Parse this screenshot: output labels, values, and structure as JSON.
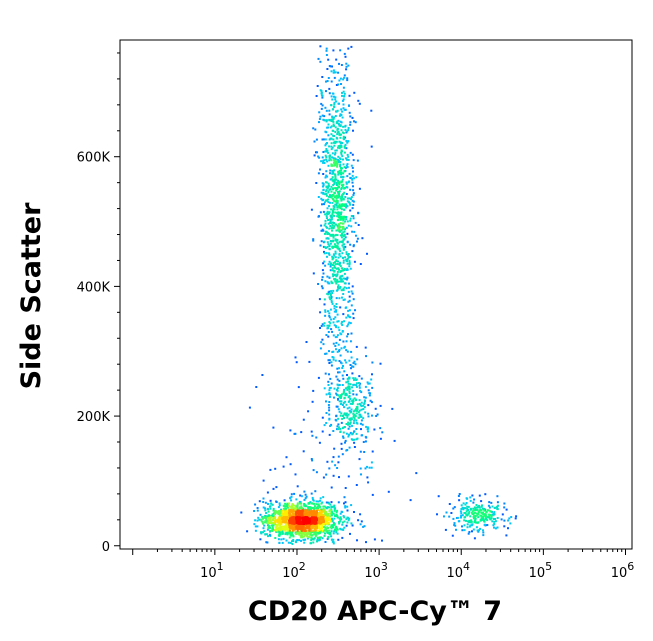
{
  "chart_data": {
    "type": "scatter",
    "subtype": "flow-cytometry-density-dot-plot",
    "title": "",
    "xlabel": "CD20 APC-Cy™ 7",
    "ylabel": "Side Scatter",
    "x_scale": "log",
    "xlim": [
      0.7,
      1200000
    ],
    "y_scale": "linear",
    "ylim": [
      -5000,
      780000
    ],
    "x_ticks": [
      {
        "value": 10,
        "base": "10",
        "exp": "1"
      },
      {
        "value": 100,
        "base": "10",
        "exp": "2"
      },
      {
        "value": 1000,
        "base": "10",
        "exp": "3"
      },
      {
        "value": 10000,
        "base": "10",
        "exp": "4"
      },
      {
        "value": 100000,
        "base": "10",
        "exp": "5"
      },
      {
        "value": 1000000,
        "base": "10",
        "exp": "6"
      }
    ],
    "y_ticks": [
      {
        "value": 0,
        "label": "0"
      },
      {
        "value": 200000,
        "label": "200K"
      },
      {
        "value": 400000,
        "label": "400K"
      },
      {
        "value": 600000,
        "label": "600K"
      }
    ],
    "grid": false,
    "legend": "none",
    "color_scale": [
      "#0000ff",
      "#00c8ff",
      "#00ff80",
      "#ffff00",
      "#ff8000",
      "#ff0000"
    ],
    "populations": [
      {
        "x_center": 110,
        "y_center": 40000,
        "x_spread_decades": 0.22,
        "y_spread": 14000,
        "relative_count": 0.45
      },
      {
        "x_center": 300,
        "y_center": 520000,
        "x_spread_decades": 0.11,
        "y_spread": 120000,
        "relative_count": 0.33
      },
      {
        "x_center": 450,
        "y_center": 220000,
        "x_spread_decades": 0.13,
        "y_spread": 32000,
        "relative_count": 0.08
      },
      {
        "x_center": 15000,
        "y_center": 48000,
        "x_spread_decades": 0.17,
        "y_spread": 12000,
        "relative_count": 0.07
      },
      {
        "x_center": 250,
        "y_center": 130000,
        "x_spread_decades": 0.4,
        "y_spread": 80000,
        "relative_count": 0.04
      }
    ]
  }
}
